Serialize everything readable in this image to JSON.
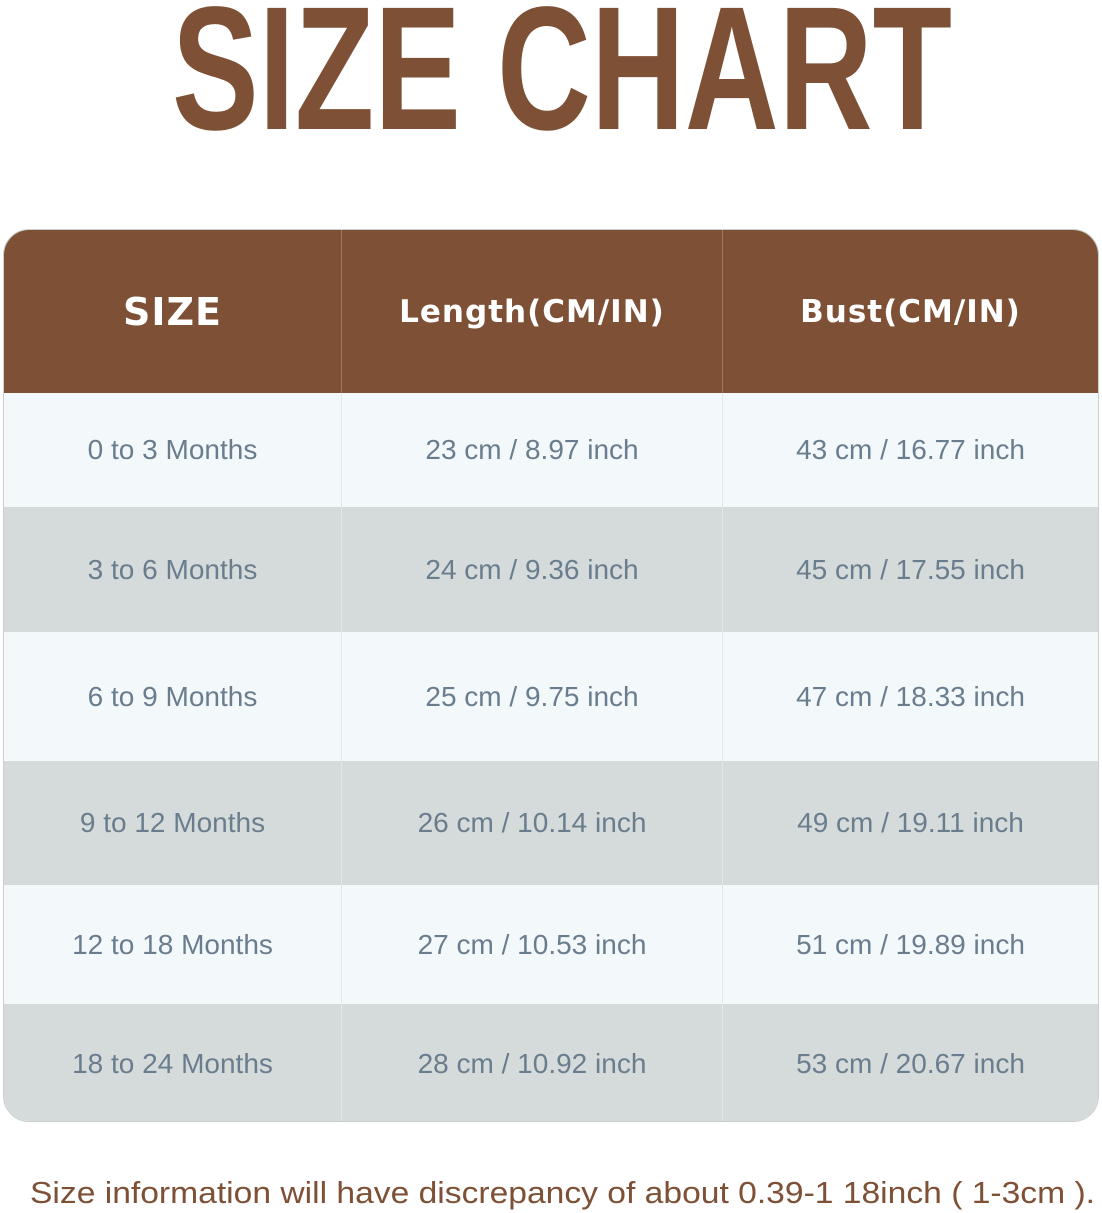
{
  "title": "SIZE CHART",
  "colors": {
    "brand_brown": "#7E5136",
    "row_light": "#F3F8FA",
    "row_dark": "#D5DBDA",
    "cell_text": "#6A7D8E"
  },
  "table": {
    "headers": [
      "SIZE",
      "Length(CM/IN)",
      "Bust(CM/IN)"
    ],
    "rows": [
      [
        "0 to 3 Months",
        "23 cm / 8.97 inch",
        "43 cm / 16.77 inch"
      ],
      [
        "3 to 6 Months",
        "24 cm / 9.36 inch",
        "45 cm / 17.55 inch"
      ],
      [
        "6 to 9 Months",
        "25 cm / 9.75 inch",
        "47 cm / 18.33 inch"
      ],
      [
        "9 to 12 Months",
        "26 cm / 10.14 inch",
        "49 cm / 19.11 inch"
      ],
      [
        "12 to 18 Months",
        "27 cm / 10.53 inch",
        "51 cm / 19.89 inch"
      ],
      [
        "18 to 24 Months",
        "28 cm / 10.92 inch",
        "53 cm / 20.67 inch"
      ]
    ]
  },
  "footnote": "Size information will have discrepancy of about 0.39-1 18inch ( 1-3cm )."
}
